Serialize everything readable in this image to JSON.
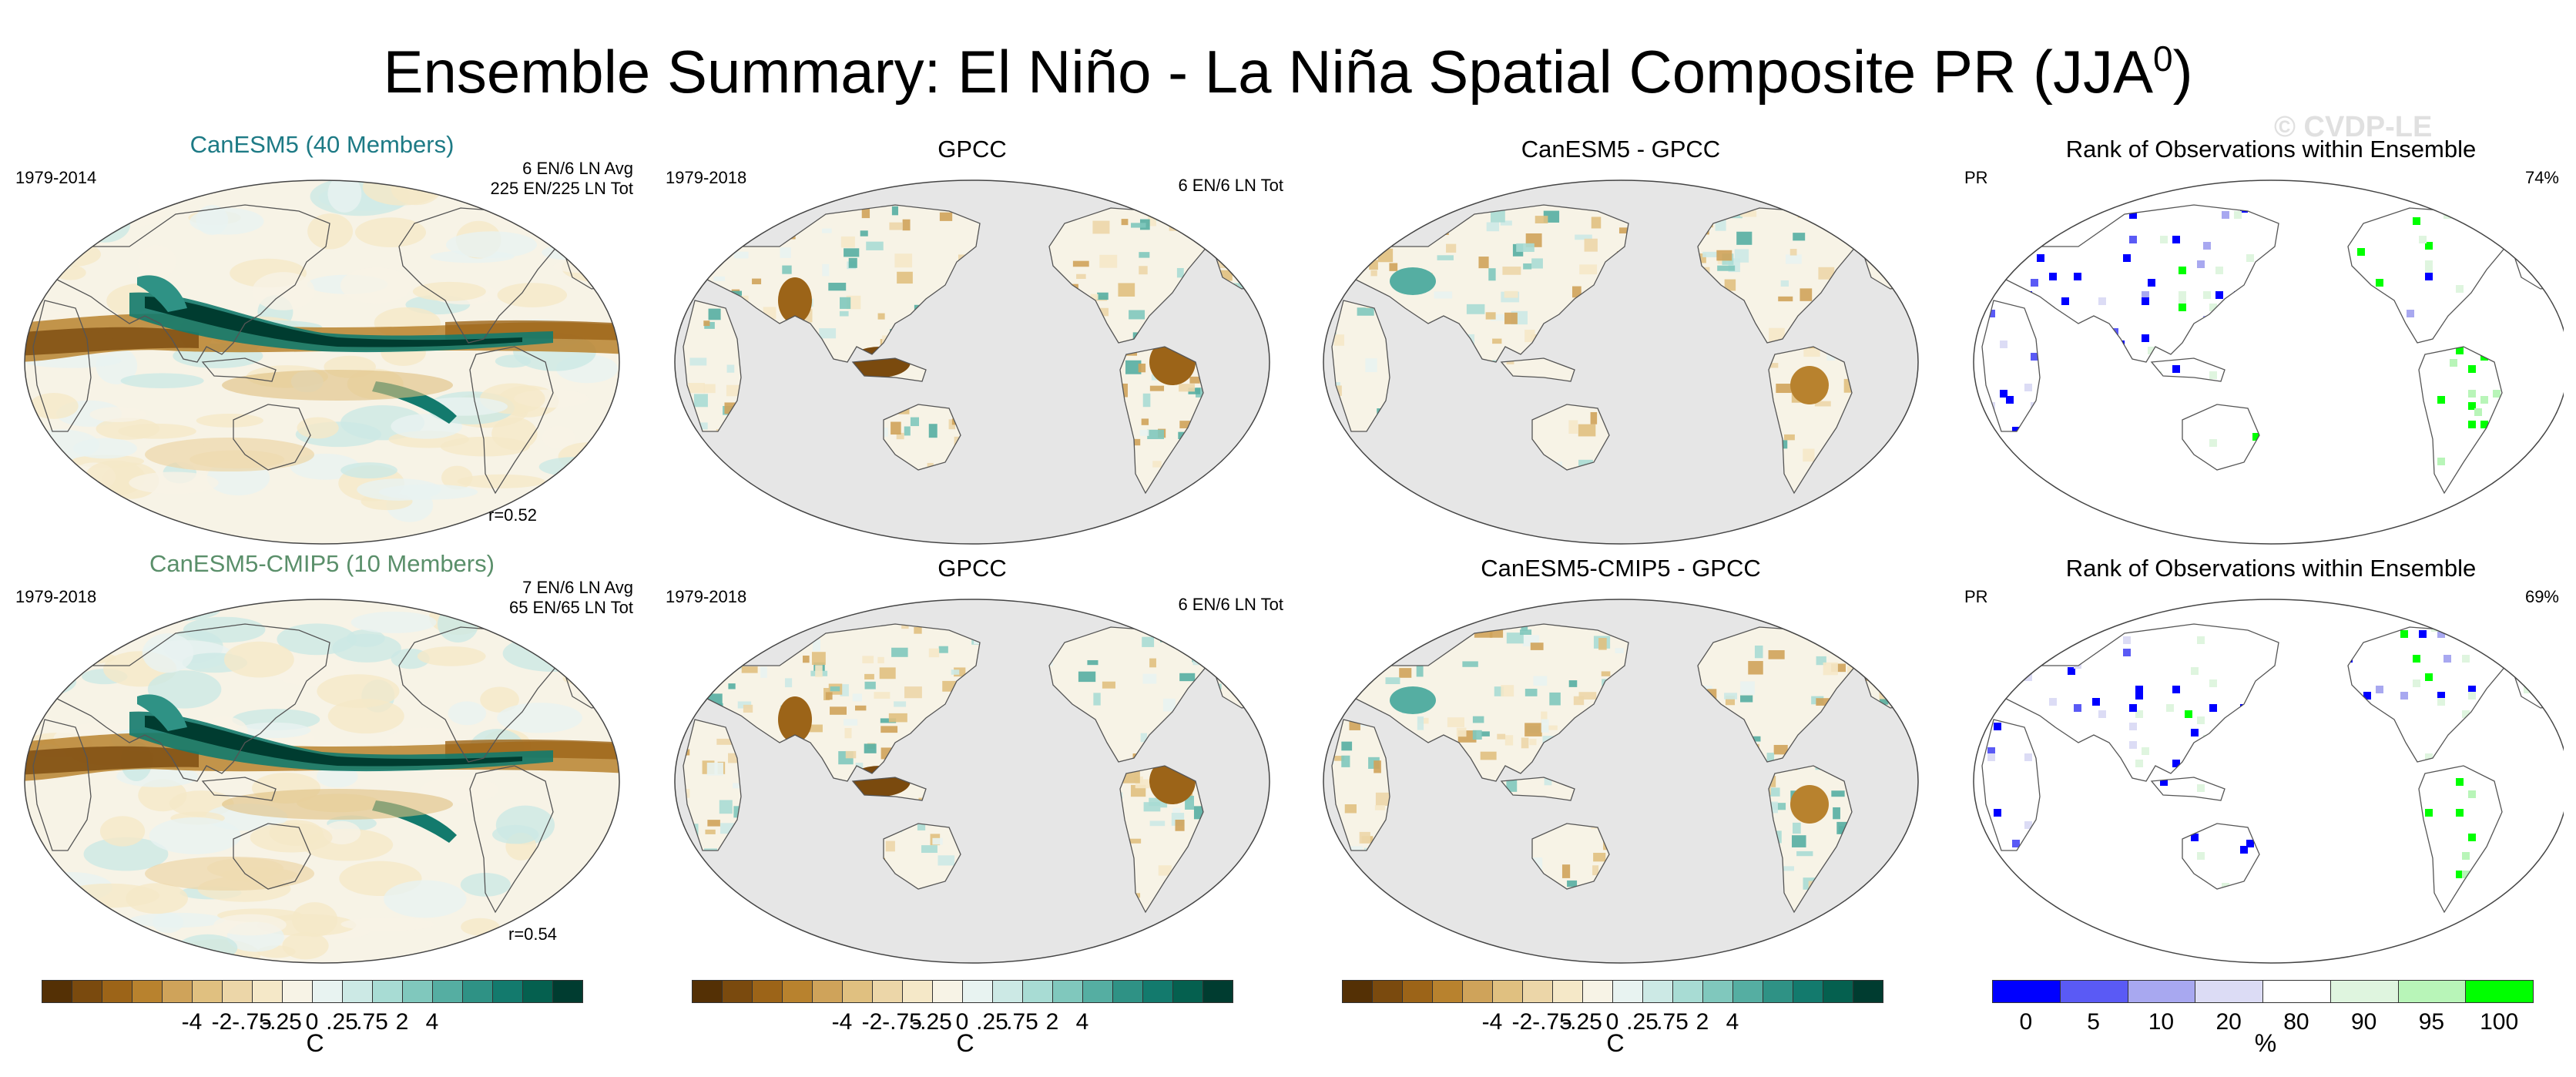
{
  "title": {
    "text": "Ensemble Summary: El Niño - La Niña Spatial Composite PR (JJA",
    "sup": "0",
    "close": ")"
  },
  "watermark": "© CVDP-LE",
  "rows": [
    {
      "model": {
        "title": "CanESM5 (40 Members)",
        "period": "1979-2014",
        "stats_line1": "6 EN/6 LN Avg",
        "stats_line2": "225 EN/225 LN Tot",
        "corr": "r=0.52"
      },
      "obs": {
        "title": "GPCC",
        "period": "1979-2018",
        "stats": "6 EN/6 LN Tot"
      },
      "diff": {
        "title": "CanESM5 - GPCC"
      },
      "rank": {
        "title": "Rank of Observations within Ensemble",
        "var": "PR",
        "pct": "74%"
      }
    },
    {
      "model": {
        "title": "CanESM5-CMIP5 (10 Members)",
        "period": "1979-2018",
        "stats_line1": "7 EN/6 LN Avg",
        "stats_line2": "65 EN/65 LN Tot",
        "corr": "r=0.54"
      },
      "obs": {
        "title": "GPCC",
        "period": "1979-2018",
        "stats": "6 EN/6 LN Tot"
      },
      "diff": {
        "title": "CanESM5-CMIP5 - GPCC"
      },
      "rank": {
        "title": "Rank of Observations within Ensemble",
        "var": "PR",
        "pct": "69%"
      }
    }
  ],
  "colorbars": {
    "brbg": {
      "ticks": [
        "-4",
        "-2",
        "-.75",
        "-.25",
        "0",
        ".25",
        ".75",
        "2",
        "4"
      ],
      "unit": "C",
      "colors": [
        "#543005",
        "#7a4a0e",
        "#9c6418",
        "#b8822e",
        "#cfa35a",
        "#e0c080",
        "#ecd6a8",
        "#f5e8c8",
        "#f7f3e6",
        "#e8f3f1",
        "#cce9e5",
        "#a8dcd4",
        "#80c8bd",
        "#55aea2",
        "#2f9285",
        "#137a6d",
        "#05604f",
        "#003c30"
      ]
    },
    "rank": {
      "ticks": [
        "0",
        "5",
        "10",
        "20",
        "80",
        "90",
        "95",
        "100"
      ],
      "unit": "%",
      "colors": [
        "#0000ff",
        "#5a5af5",
        "#a8a8f0",
        "#dcdcf5",
        "#ffffff",
        "#dff5df",
        "#b8f5b8",
        "#00ff00"
      ]
    }
  },
  "palette": {
    "ocean_mask": "#e6e6e6",
    "rank_low": "#0000ff",
    "rank_high": "#00ff00",
    "teal": "#1d7a85",
    "brown": "#a8681f"
  }
}
